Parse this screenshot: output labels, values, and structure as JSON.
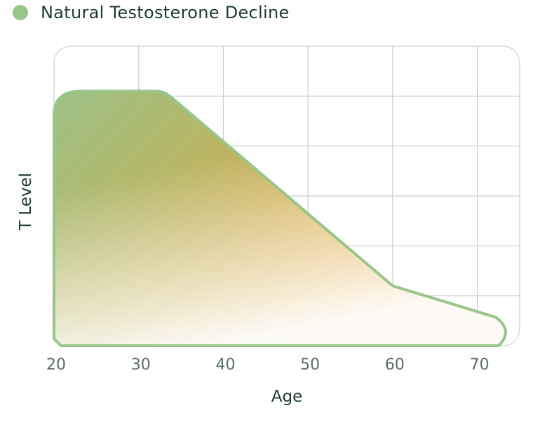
{
  "colors": {
    "line": "#98c58a",
    "fill_start": "#9bc184",
    "fill_mid": "#c2b35e",
    "fill_end": "#f0a431",
    "grid": "#c9cdcb",
    "frame": "#d7d9d8"
  },
  "chart_data": {
    "type": "area",
    "title": "",
    "legend": {
      "position": "top-left",
      "entries": [
        "Natural Testosterone Decline"
      ]
    },
    "xlabel": "Age",
    "ylabel": "T Level",
    "xlim": [
      20,
      75
    ],
    "ylim": [
      0,
      6
    ],
    "grid": true,
    "x_ticks": [
      20,
      30,
      40,
      50,
      60,
      70
    ],
    "y_ticks_labeled": false,
    "series": [
      {
        "name": "Natural Testosterone Decline",
        "x": [
          20,
          22,
          33,
          60,
          73
        ],
        "y": [
          4.6,
          5.1,
          5.1,
          1.2,
          0.5
        ]
      }
    ]
  }
}
